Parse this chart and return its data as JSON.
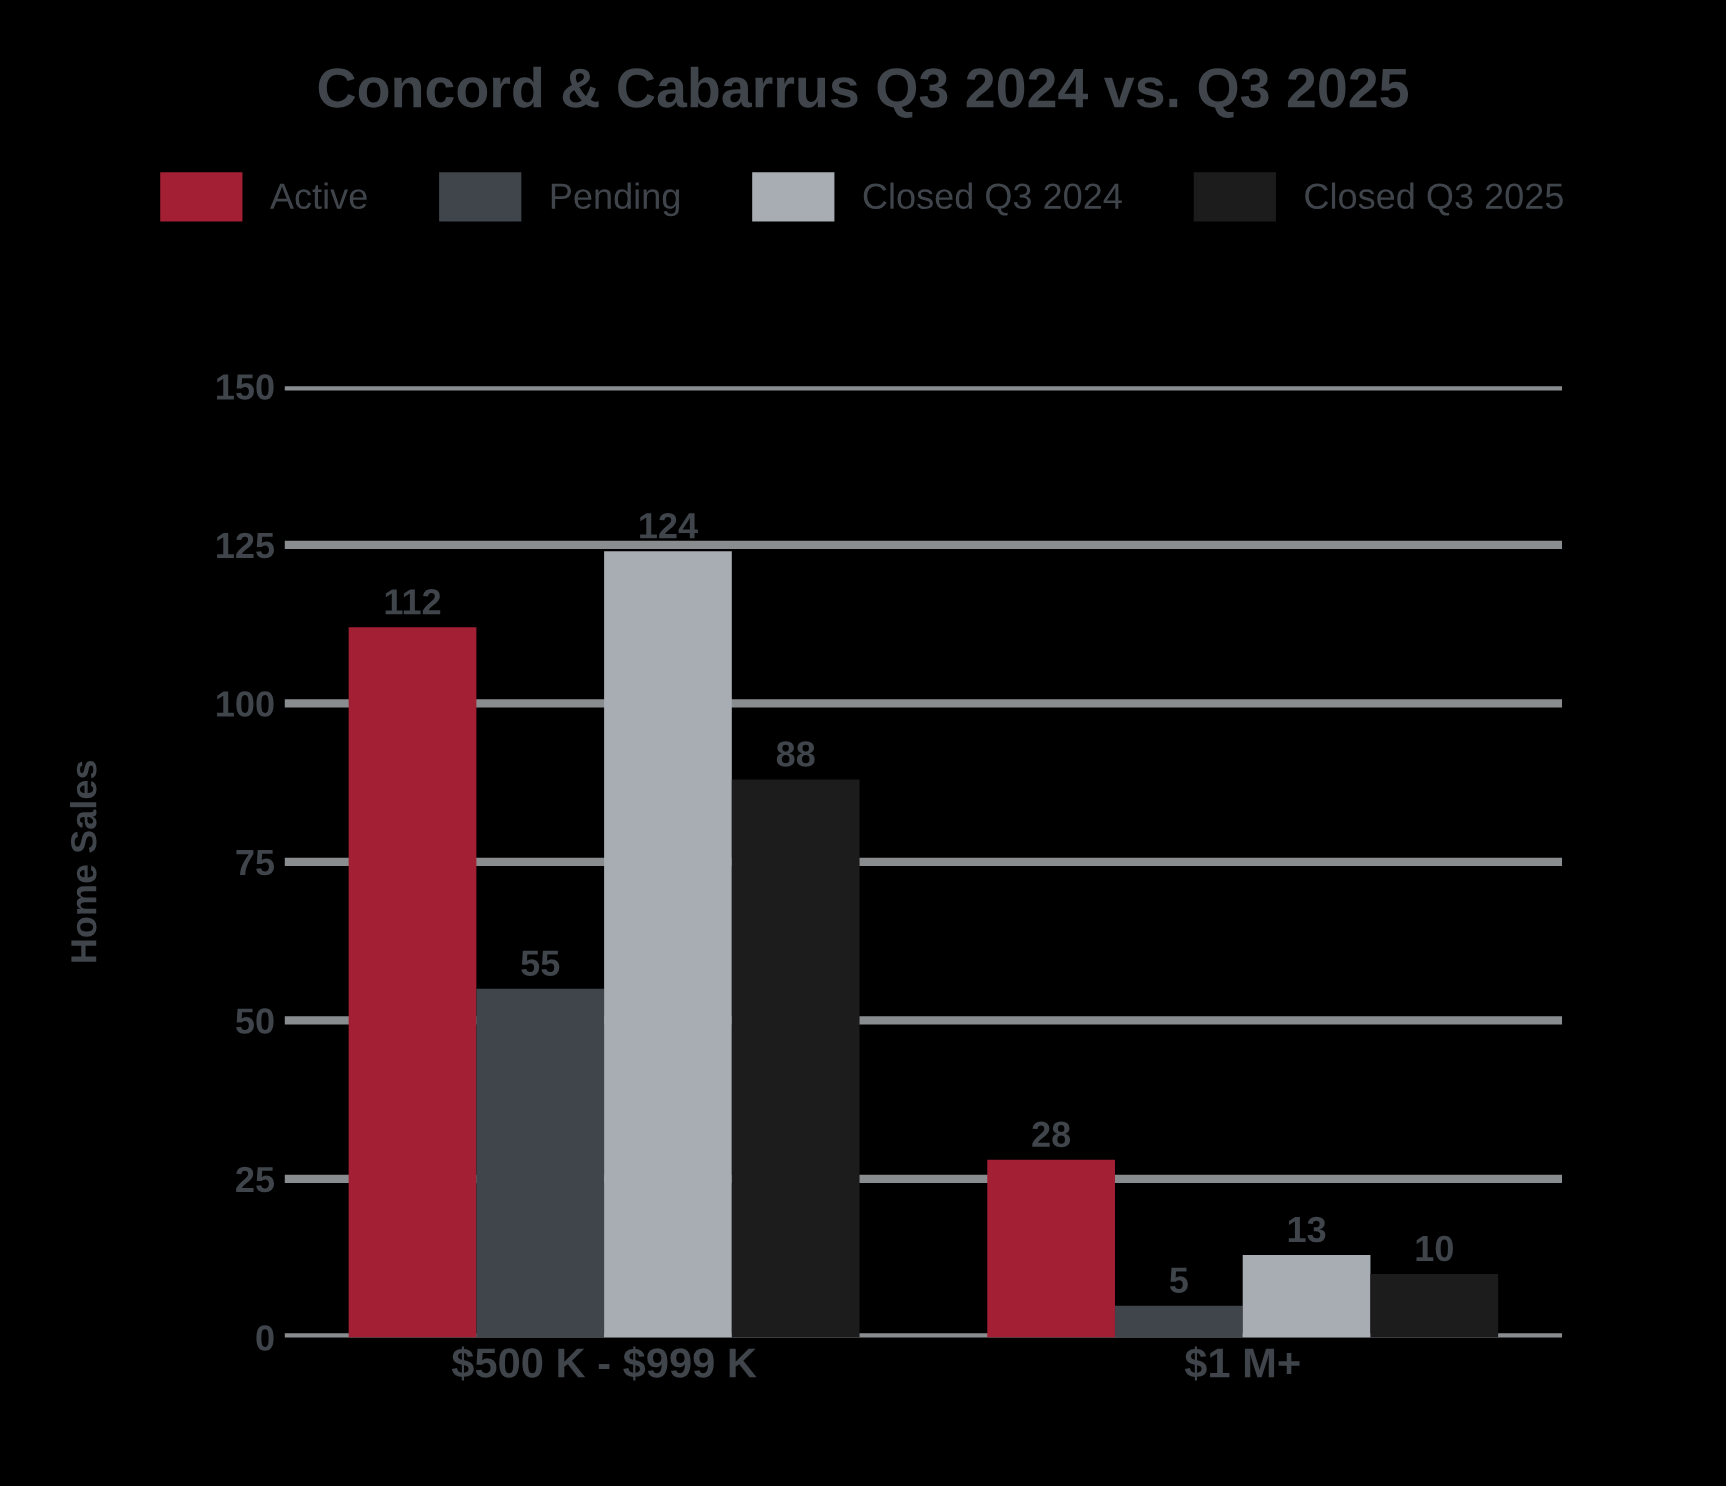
{
  "chart_data": {
    "type": "bar",
    "title": "Concord & Cabarrus Q3 2024 vs. Q3 2025",
    "ylabel": "Home Sales",
    "categories": [
      "$500 K - $999 K",
      "$1 M+"
    ],
    "series": [
      {
        "name": "Active",
        "color": "#a31f34",
        "values": [
          112,
          28
        ]
      },
      {
        "name": "Pending",
        "color": "#3f454b",
        "values": [
          55,
          5
        ]
      },
      {
        "name": "Closed Q3 2024",
        "color": "#a7adb2",
        "values": [
          124,
          13
        ]
      },
      {
        "name": "Closed Q3 2025",
        "color": "#1c1c1c",
        "values": [
          88,
          10
        ]
      }
    ],
    "ylim": [
      0,
      150
    ],
    "yticks": [
      0,
      25,
      50,
      75,
      100,
      125,
      150
    ],
    "grid": "y",
    "legend": "top",
    "data_labels": true
  }
}
